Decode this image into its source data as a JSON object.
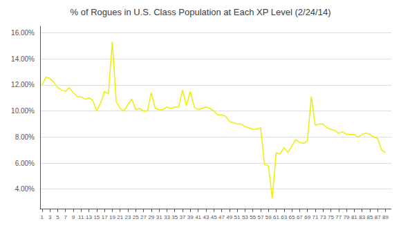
{
  "chart_data": {
    "type": "line",
    "title": "% of Rogues in U.S. Class Population at Each XP Level (2/24/14)",
    "color": "#EEEE00",
    "x": [
      1,
      2,
      3,
      4,
      5,
      6,
      7,
      8,
      9,
      10,
      11,
      12,
      13,
      14,
      15,
      16,
      17,
      18,
      19,
      20,
      21,
      22,
      23,
      24,
      25,
      26,
      27,
      28,
      29,
      30,
      31,
      32,
      33,
      34,
      35,
      36,
      37,
      38,
      39,
      40,
      41,
      42,
      43,
      44,
      45,
      46,
      47,
      48,
      49,
      50,
      51,
      52,
      53,
      54,
      55,
      56,
      57,
      58,
      59,
      60,
      61,
      62,
      63,
      64,
      65,
      66,
      67,
      68,
      69,
      70,
      71,
      72,
      73,
      74,
      75,
      76,
      77,
      78,
      79,
      80,
      81,
      82,
      83,
      84,
      85,
      86,
      87,
      88,
      89
    ],
    "values": [
      0.12,
      0.126,
      0.125,
      0.122,
      0.118,
      0.116,
      0.115,
      0.118,
      0.114,
      0.111,
      0.111,
      0.109,
      0.11,
      0.108,
      0.1,
      0.106,
      0.115,
      0.113,
      0.153,
      0.107,
      0.102,
      0.1,
      0.105,
      0.109,
      0.101,
      0.102,
      0.1,
      0.1,
      0.114,
      0.102,
      0.101,
      0.101,
      0.103,
      0.102,
      0.103,
      0.103,
      0.116,
      0.104,
      0.115,
      0.103,
      0.101,
      0.102,
      0.103,
      0.102,
      0.1,
      0.097,
      0.097,
      0.096,
      0.092,
      0.091,
      0.09,
      0.09,
      0.088,
      0.087,
      0.086,
      0.086,
      0.087,
      0.059,
      0.058,
      0.033,
      0.068,
      0.067,
      0.072,
      0.068,
      0.073,
      0.078,
      0.076,
      0.075,
      0.077,
      0.111,
      0.089,
      0.09,
      0.09,
      0.087,
      0.086,
      0.085,
      0.083,
      0.084,
      0.082,
      0.082,
      0.082,
      0.08,
      0.082,
      0.083,
      0.082,
      0.08,
      0.079,
      0.07,
      0.068
    ],
    "xlim": [
      0.5,
      90.5
    ],
    "xticks": [
      1,
      3,
      5,
      7,
      9,
      11,
      13,
      15,
      17,
      19,
      21,
      23,
      25,
      27,
      29,
      31,
      33,
      35,
      37,
      39,
      41,
      43,
      45,
      47,
      49,
      51,
      53,
      55,
      57,
      59,
      61,
      63,
      65,
      67,
      69,
      71,
      73,
      75,
      77,
      79,
      81,
      83,
      85,
      87,
      89
    ],
    "ylim": [
      0.025,
      0.165
    ],
    "yticks": [
      {
        "value": 0.04,
        "label": "4.00%"
      },
      {
        "value": 0.06,
        "label": "6.00%"
      },
      {
        "value": 0.08,
        "label": "8.00%"
      },
      {
        "value": 0.1,
        "label": "10.00%"
      },
      {
        "value": 0.12,
        "label": "12.00%"
      },
      {
        "value": 0.14,
        "label": "14.00%"
      },
      {
        "value": 0.16,
        "label": "16.00%"
      }
    ],
    "grid": true
  }
}
